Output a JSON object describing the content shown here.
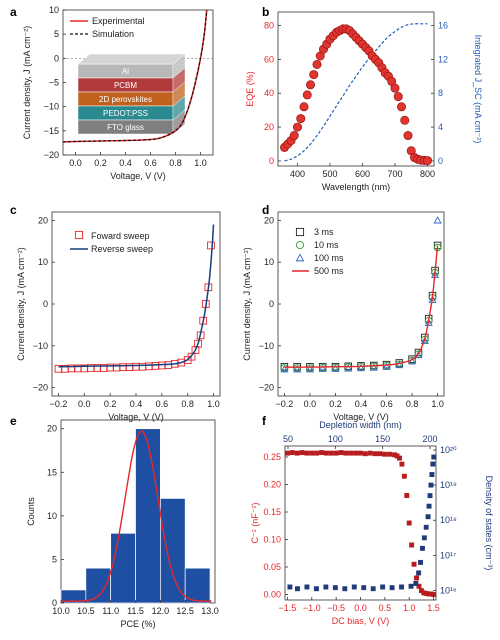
{
  "panels": {
    "a": "a",
    "b": "b",
    "c": "c",
    "d": "d",
    "e": "e",
    "f": "f"
  },
  "colors": {
    "red": "#e8262a",
    "red_marker": "#e0342f",
    "dark_red": "#b61c1c",
    "blue_dash": "#1f5fb5",
    "navy": "#1f3a78",
    "hist_blue": "#1e4fa3",
    "dark_blue_line": "#173f7d",
    "green": "#2ca02c",
    "blue_tri": "#2f67c9",
    "gray_grid": "#cccccc"
  },
  "chart_data": [
    {
      "panel": "a",
      "type": "line",
      "xlabel": "Voltage, V (V)",
      "ylabel": "Current density, J (mA cm⁻²)",
      "xlim": [
        -0.1,
        1.1
      ],
      "ylim": [
        -20,
        10
      ],
      "xticks": [
        0.0,
        0.2,
        0.4,
        0.6,
        0.8,
        1.0
      ],
      "yticks": [
        -20,
        -15,
        -10,
        -5,
        0,
        5,
        10
      ],
      "legend": {
        "placement": "top-left",
        "entries": [
          "Experimental",
          "Simulation"
        ]
      },
      "series": [
        {
          "name": "Experimental",
          "style": "solid-red",
          "x": [
            -0.1,
            0.0,
            0.2,
            0.4,
            0.6,
            0.7,
            0.8,
            0.85,
            0.9,
            0.95,
            1.0,
            1.03,
            1.05
          ],
          "y": [
            -17.3,
            -17.2,
            -17.1,
            -17.0,
            -16.8,
            -16.3,
            -15.0,
            -13.5,
            -10.5,
            -6.0,
            0.0,
            5.0,
            10.0
          ]
        },
        {
          "name": "Simulation",
          "style": "dashed-black",
          "x": [
            -0.1,
            0.0,
            0.2,
            0.4,
            0.6,
            0.7,
            0.8,
            0.85,
            0.9,
            0.95,
            1.0,
            1.03,
            1.05
          ],
          "y": [
            -17.3,
            -17.2,
            -17.1,
            -17.0,
            -16.8,
            -16.3,
            -15.0,
            -13.5,
            -10.5,
            -6.0,
            0.0,
            5.0,
            10.0
          ]
        }
      ],
      "inset_layers": [
        "Al",
        "PCBM",
        "2D perovskites",
        "PEDOT:PSS",
        "FTO glass"
      ]
    },
    {
      "panel": "b",
      "type": "scatter",
      "xlabel": "Wavelength (nm)",
      "ylabel_left": "EQE (%)",
      "ylabel_right": "Integrated J_SC (mA cm⁻²)",
      "xlim": [
        340,
        820
      ],
      "ylim_left": [
        -3,
        88
      ],
      "ylim_right": [
        -0.6,
        17.6
      ],
      "xticks": [
        400,
        500,
        600,
        700,
        800
      ],
      "yticks_left": [
        0,
        20,
        40,
        60,
        80
      ],
      "yticks_right": [
        0,
        4,
        8,
        12,
        16
      ],
      "series": [
        {
          "name": "EQE",
          "style": "red-circles",
          "x": [
            360,
            370,
            380,
            390,
            400,
            410,
            420,
            430,
            440,
            450,
            460,
            470,
            480,
            490,
            500,
            510,
            520,
            530,
            540,
            550,
            560,
            570,
            580,
            590,
            600,
            610,
            620,
            630,
            640,
            650,
            660,
            670,
            680,
            690,
            700,
            710,
            720,
            730,
            740,
            750,
            760,
            770,
            780,
            790,
            800
          ],
          "y": [
            8,
            10,
            12,
            15,
            20,
            25,
            32,
            39,
            45,
            51,
            57,
            62,
            66,
            69,
            72,
            74,
            76,
            77,
            78,
            78,
            77,
            75,
            73,
            71,
            69,
            67,
            65,
            62,
            60,
            58,
            55,
            52,
            50,
            47,
            43,
            38,
            32,
            24,
            15,
            6,
            2,
            1,
            0.5,
            0.3,
            0.2
          ]
        },
        {
          "name": "Integrated JSC",
          "style": "blue-dashed",
          "axis": "right",
          "x": [
            360,
            380,
            400,
            420,
            440,
            460,
            480,
            500,
            520,
            540,
            560,
            580,
            600,
            620,
            640,
            660,
            680,
            700,
            720,
            740,
            760,
            780,
            800
          ],
          "y": [
            0,
            0.2,
            0.6,
            1.2,
            2.0,
            3.0,
            4.1,
            5.3,
            6.5,
            7.7,
            8.9,
            10.0,
            11.1,
            12.1,
            13.0,
            13.9,
            14.7,
            15.3,
            15.8,
            16.1,
            16.2,
            16.2,
            16.2
          ]
        }
      ]
    },
    {
      "panel": "c",
      "type": "line",
      "xlabel": "Voltage, V (V)",
      "ylabel": "Current density, J (mA cm⁻²)",
      "xlim": [
        -0.25,
        1.05
      ],
      "ylim": [
        -22,
        22
      ],
      "xticks": [
        -0.2,
        0.0,
        0.2,
        0.4,
        0.6,
        0.8,
        1.0
      ],
      "yticks": [
        -20,
        -10,
        0,
        10,
        20
      ],
      "legend": {
        "placement": "top-left",
        "entries": [
          "Foward sweep",
          "Reverse sweep"
        ]
      },
      "series": [
        {
          "name": "Foward sweep",
          "style": "red-open-squares",
          "x": [
            -0.2,
            -0.15,
            -0.1,
            -0.05,
            0.0,
            0.05,
            0.1,
            0.15,
            0.2,
            0.25,
            0.3,
            0.35,
            0.4,
            0.45,
            0.5,
            0.55,
            0.6,
            0.65,
            0.7,
            0.75,
            0.8,
            0.83,
            0.86,
            0.88,
            0.9,
            0.92,
            0.94,
            0.96,
            0.98
          ],
          "y": [
            -15.5,
            -15.5,
            -15.4,
            -15.4,
            -15.4,
            -15.3,
            -15.3,
            -15.3,
            -15.2,
            -15.2,
            -15.1,
            -15.1,
            -15.0,
            -15.0,
            -14.9,
            -14.8,
            -14.7,
            -14.6,
            -14.3,
            -14.0,
            -13.4,
            -12.6,
            -11.0,
            -9.5,
            -7.5,
            -4.0,
            0.0,
            4.0,
            14.0
          ]
        },
        {
          "name": "Reverse sweep",
          "style": "blue-solid",
          "x": [
            -0.2,
            0.0,
            0.2,
            0.4,
            0.6,
            0.7,
            0.75,
            0.8,
            0.85,
            0.88,
            0.9,
            0.93,
            0.95,
            0.97,
            0.99,
            1.0
          ],
          "y": [
            -15.0,
            -14.9,
            -14.8,
            -14.7,
            -14.5,
            -14.3,
            -14.0,
            -13.3,
            -11.5,
            -9.5,
            -7.0,
            -2.5,
            1.5,
            6.5,
            14.0,
            19.0
          ]
        }
      ]
    },
    {
      "panel": "d",
      "type": "scatter",
      "xlabel": "Voltage, V (V)",
      "ylabel": "Current density, J (mA cm⁻²)",
      "xlim": [
        -0.25,
        1.05
      ],
      "ylim": [
        -22,
        22
      ],
      "xticks": [
        -0.2,
        0.0,
        0.2,
        0.4,
        0.6,
        0.8,
        1.0
      ],
      "yticks": [
        -20,
        -10,
        0,
        10,
        20
      ],
      "legend": {
        "placement": "top-left",
        "entries": [
          "3 ms",
          "10 ms",
          "100 ms",
          "500 ms"
        ]
      },
      "series": [
        {
          "name": "3 ms",
          "style": "black-open-squares",
          "x": [
            -0.2,
            -0.1,
            0.0,
            0.1,
            0.2,
            0.3,
            0.4,
            0.5,
            0.6,
            0.7,
            0.8,
            0.85,
            0.9,
            0.93,
            0.96,
            0.98,
            1.0
          ],
          "y": [
            -15,
            -15,
            -15,
            -15,
            -15,
            -14.9,
            -14.8,
            -14.7,
            -14.5,
            -14.1,
            -13.2,
            -11.6,
            -8.0,
            -3.5,
            2.0,
            8.0,
            14.0
          ]
        },
        {
          "name": "10 ms",
          "style": "green-open-circles",
          "x": [
            -0.2,
            -0.1,
            0.0,
            0.1,
            0.2,
            0.3,
            0.4,
            0.5,
            0.6,
            0.7,
            0.8,
            0.85,
            0.9,
            0.93,
            0.96,
            0.98,
            1.0
          ],
          "y": [
            -15.3,
            -15.3,
            -15.3,
            -15.2,
            -15.2,
            -15.1,
            -15.0,
            -14.9,
            -14.7,
            -14.4,
            -13.5,
            -12.0,
            -8.5,
            -4.0,
            1.5,
            7.5,
            13.5
          ]
        },
        {
          "name": "100 ms",
          "style": "blue-open-triangles",
          "x": [
            -0.2,
            -0.1,
            0.0,
            0.1,
            0.2,
            0.3,
            0.4,
            0.5,
            0.6,
            0.7,
            0.8,
            0.85,
            0.9,
            0.93,
            0.96,
            0.98,
            1.0
          ],
          "y": [
            -15.6,
            -15.6,
            -15.6,
            -15.5,
            -15.5,
            -15.4,
            -15.3,
            -15.2,
            -15.0,
            -14.6,
            -13.7,
            -12.2,
            -8.8,
            -4.5,
            1.0,
            7.0,
            20.0
          ]
        },
        {
          "name": "500 ms",
          "style": "red-solid",
          "x": [
            -0.2,
            0.0,
            0.2,
            0.4,
            0.6,
            0.7,
            0.8,
            0.85,
            0.9,
            0.93,
            0.96,
            0.98,
            1.0
          ],
          "y": [
            -15.1,
            -15.1,
            -15.0,
            -14.9,
            -14.6,
            -14.2,
            -13.3,
            -11.8,
            -8.3,
            -3.8,
            1.8,
            7.8,
            14.0
          ]
        }
      ]
    },
    {
      "panel": "e",
      "type": "bar",
      "xlabel": "PCE (%)",
      "ylabel": "Counts",
      "xlim": [
        10.0,
        13.1
      ],
      "ylim": [
        0,
        21
      ],
      "xticks": [
        10.0,
        10.5,
        11.0,
        11.5,
        12.0,
        12.5,
        13.0
      ],
      "yticks": [
        0,
        5,
        10,
        15,
        20
      ],
      "bins": [
        {
          "from": 10.0,
          "to": 10.5,
          "count": 1.5
        },
        {
          "from": 10.5,
          "to": 11.0,
          "count": 4
        },
        {
          "from": 11.0,
          "to": 11.5,
          "count": 8
        },
        {
          "from": 11.5,
          "to": 12.0,
          "count": 20
        },
        {
          "from": 12.0,
          "to": 12.5,
          "count": 12
        },
        {
          "from": 12.5,
          "to": 13.0,
          "count": 4
        }
      ],
      "fit": {
        "type": "gaussian",
        "mean": 11.62,
        "sigma": 0.33,
        "peak": 19.7,
        "baseline": 0.2
      }
    },
    {
      "panel": "f",
      "type": "scatter",
      "xlabel": "DC bias, V (V)",
      "xlabel_top": "Depletion width (nm)",
      "ylabel_left": "C⁻² (nF⁻²)",
      "ylabel_right": "Density of states (cm⁻³)",
      "xlim": [
        -1.55,
        1.55
      ],
      "ylim_left": [
        -0.01,
        0.27
      ],
      "xticks": [
        -1.5,
        -1.0,
        -0.5,
        0.0,
        0.5,
        1.0,
        1.5
      ],
      "yticks_left": [
        0.0,
        0.05,
        0.1,
        0.15,
        0.2,
        0.25
      ],
      "xticks_top": [
        50,
        100,
        150,
        200
      ],
      "yticks_right": [
        "10¹⁶",
        "10¹⁷",
        "10¹⁸",
        "10¹⁹",
        "10²⁰"
      ],
      "series": [
        {
          "name": "C^-2",
          "style": "red-squares",
          "x": [
            -1.5,
            -1.4,
            -1.3,
            -1.2,
            -1.1,
            -1.0,
            -0.9,
            -0.8,
            -0.7,
            -0.6,
            -0.5,
            -0.4,
            -0.3,
            -0.2,
            -0.1,
            0.0,
            0.1,
            0.2,
            0.3,
            0.4,
            0.5,
            0.6,
            0.7,
            0.75,
            0.8,
            0.85,
            0.9,
            0.95,
            1.0,
            1.05,
            1.1,
            1.15,
            1.2,
            1.25,
            1.3,
            1.35,
            1.4,
            1.45,
            1.5
          ],
          "y": [
            0.257,
            0.258,
            0.257,
            0.258,
            0.257,
            0.257,
            0.257,
            0.258,
            0.257,
            0.257,
            0.257,
            0.258,
            0.257,
            0.257,
            0.257,
            0.257,
            0.256,
            0.257,
            0.256,
            0.256,
            0.255,
            0.255,
            0.254,
            0.252,
            0.248,
            0.237,
            0.215,
            0.18,
            0.13,
            0.09,
            0.055,
            0.03,
            0.015,
            0.007,
            0.003,
            0.002,
            0.001,
            0.001,
            0.0
          ]
        },
        {
          "name": "Density of states",
          "style": "navy-squares",
          "axis": "right-log",
          "depletion_nm": [
            52,
            60,
            70,
            80,
            90,
            100,
            110,
            120,
            130,
            140,
            150,
            160,
            170,
            180,
            185,
            188,
            190,
            192,
            194,
            196,
            198,
            199,
            200,
            201,
            202,
            203,
            204
          ],
          "log10_dos": [
            16.1,
            16.05,
            16.1,
            16.05,
            16.1,
            16.08,
            16.05,
            16.1,
            16.08,
            16.05,
            16.1,
            16.08,
            16.1,
            16.12,
            16.2,
            16.5,
            16.8,
            17.2,
            17.5,
            17.8,
            18.1,
            18.4,
            18.7,
            19.0,
            19.3,
            19.6,
            19.8
          ]
        }
      ]
    }
  ]
}
